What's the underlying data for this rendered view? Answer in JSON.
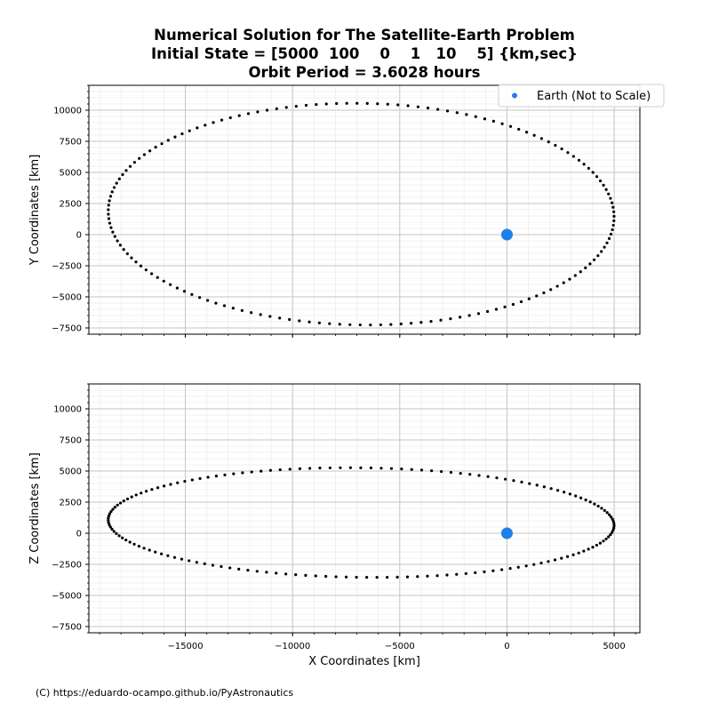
{
  "title_lines": [
    "Numerical Solution for The Satellite-Earth Problem",
    "Initial State = [5000  100    0    1   10    5] {km,sec}",
    "Orbit Period = 3.6028 hours"
  ],
  "credit": "(C) https://eduardo-ocampo.github.io/PyAstronautics",
  "colors": {
    "orbit": "#000000",
    "earth": "#1f7fe8"
  },
  "chart_data": [
    {
      "type": "scatter",
      "title": "",
      "xlabel": "",
      "ylabel": "Y Coordinates [km]",
      "xlim": [
        -19500,
        6200
      ],
      "ylim": [
        -8000,
        12000
      ],
      "xticks": [
        -15000,
        -10000,
        -5000,
        0,
        5000
      ],
      "yticks": [
        -7500,
        -5000,
        -2500,
        0,
        2500,
        5000,
        7500,
        10000
      ],
      "grid": true,
      "legend": {
        "placement": "top-right",
        "entries": [
          "Earth (Not to Scale)"
        ]
      },
      "series": [
        {
          "name": "orbit",
          "marker": "dot",
          "ellipse": {
            "cx": -6800,
            "cy": 1650,
            "semi_a": 11800,
            "semi_b": 8900,
            "tilt_deg": -2.6
          },
          "points": 155
        },
        {
          "name": "Earth (Not to Scale)",
          "marker": "circle",
          "x": [
            0
          ],
          "y": [
            0
          ]
        }
      ]
    },
    {
      "type": "scatter",
      "title": "",
      "xlabel": "X Coordinates [km]",
      "ylabel": "Z Coordinates [km]",
      "xlim": [
        -19500,
        6200
      ],
      "ylim": [
        -8000,
        12000
      ],
      "xticks": [
        -15000,
        -10000,
        -5000,
        0,
        5000
      ],
      "xticklabels": [
        "−15000",
        "−10000",
        "−5000",
        "0",
        "5000"
      ],
      "yticks": [
        -7500,
        -5000,
        -2500,
        0,
        2500,
        5000,
        7500,
        10000
      ],
      "grid": true,
      "series": [
        {
          "name": "orbit",
          "marker": "dot",
          "ellipse": {
            "cx": -6800,
            "cy": 860,
            "semi_a": 11800,
            "semi_b": 4400,
            "tilt_deg": -1.3
          },
          "points": 155
        },
        {
          "name": "Earth (Not to Scale)",
          "marker": "circle",
          "x": [
            0
          ],
          "y": [
            0
          ]
        }
      ]
    }
  ]
}
